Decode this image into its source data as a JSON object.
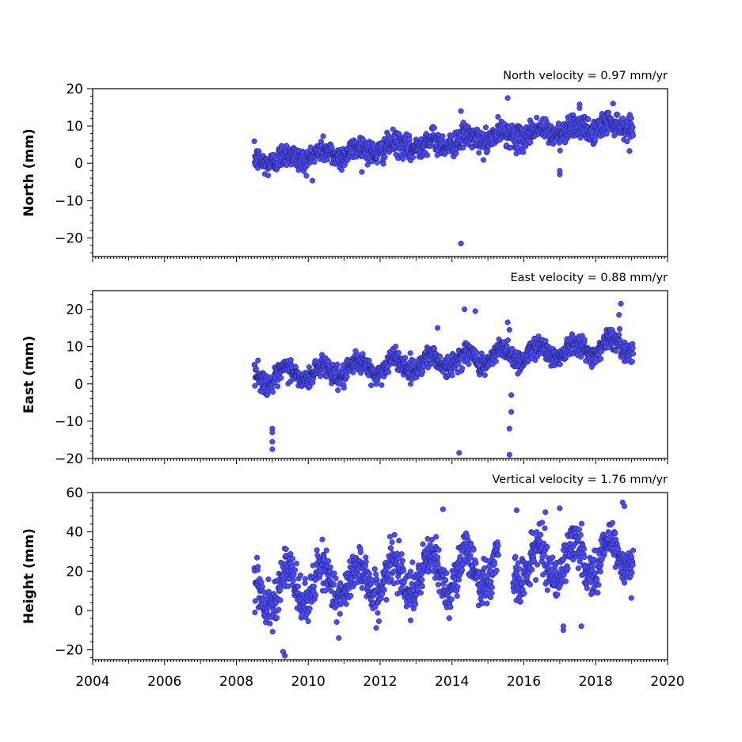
{
  "chart_data": [
    {
      "type": "scatter",
      "panel": "north",
      "annotation": "North velocity = 0.97 mm/yr",
      "ylabel": "North (mm)",
      "xlim": [
        2004,
        2020
      ],
      "ylim": [
        -25,
        20
      ],
      "yticks": [
        20,
        10,
        0,
        -10,
        -20
      ],
      "xticks": [
        2004,
        2006,
        2008,
        2010,
        2012,
        2014,
        2016,
        2018,
        2020
      ],
      "x_ticklabels_visible": false,
      "series": [
        {
          "x_start": 2008.5,
          "x_end": 2019.05,
          "offset": 0.5,
          "velocity": 0.97,
          "seasonal_amp": 1.2,
          "noise": 1.6,
          "outliers": [
            [
              2014.25,
              -21.5
            ],
            [
              2015.55,
              17.5
            ],
            [
              2014.25,
              14.0
            ],
            [
              2017.55,
              15.8
            ],
            [
              2017.0,
              -3.0
            ],
            [
              2017.0,
              -2.0
            ]
          ]
        }
      ]
    },
    {
      "type": "scatter",
      "panel": "east",
      "annotation": "East velocity = 0.88 mm/yr",
      "ylabel": "East (mm)",
      "xlim": [
        2004,
        2020
      ],
      "ylim": [
        -20,
        25
      ],
      "yticks": [
        20,
        10,
        0,
        -10,
        -20
      ],
      "xticks": [
        2004,
        2006,
        2008,
        2010,
        2012,
        2014,
        2016,
        2018,
        2020
      ],
      "x_ticklabels_visible": false,
      "series": [
        {
          "x_start": 2008.5,
          "x_end": 2019.05,
          "offset": 1.5,
          "velocity": 0.88,
          "seasonal_amp": 2.0,
          "noise": 1.4,
          "outliers": [
            [
              2009.0,
              -12.0
            ],
            [
              2009.0,
              -13.0
            ],
            [
              2009.0,
              -15.5
            ],
            [
              2009.0,
              -17.5
            ],
            [
              2014.2,
              -18.5
            ],
            [
              2014.35,
              20.0
            ],
            [
              2014.65,
              19.5
            ],
            [
              2015.6,
              -19.0
            ],
            [
              2015.6,
              -12.0
            ],
            [
              2015.65,
              -7.5
            ],
            [
              2015.65,
              -3.0
            ],
            [
              2015.55,
              16.5
            ],
            [
              2015.6,
              14.5
            ],
            [
              2018.7,
              21.5
            ],
            [
              2018.65,
              18.5
            ],
            [
              2013.6,
              15.0
            ]
          ]
        }
      ]
    },
    {
      "type": "scatter",
      "panel": "height",
      "annotation": "Vertical velocity = 1.76 mm/yr",
      "ylabel": "Height (mm)",
      "xlim": [
        2004,
        2020
      ],
      "ylim": [
        -25,
        60
      ],
      "yticks": [
        60,
        40,
        20,
        0,
        -20
      ],
      "xticks": [
        2004,
        2006,
        2008,
        2010,
        2012,
        2014,
        2016,
        2018,
        2020
      ],
      "x_ticklabels_visible": true,
      "series": [
        {
          "x_start": 2008.5,
          "x_end": 2019.05,
          "offset": 10.0,
          "velocity": 1.76,
          "seasonal_amp": 9.0,
          "noise": 5.5,
          "gaps": [
            [
              2015.3,
              2015.7
            ]
          ],
          "outliers": [
            [
              2009.35,
              -23.0
            ],
            [
              2009.3,
              -21.0
            ],
            [
              2010.85,
              -14.0
            ],
            [
              2012.85,
              -5.0
            ],
            [
              2017.1,
              -10.0
            ],
            [
              2017.1,
              -8.0
            ],
            [
              2017.6,
              -8.0
            ],
            [
              2013.75,
              51.5
            ],
            [
              2015.8,
              51.0
            ],
            [
              2016.6,
              50.0
            ],
            [
              2017.0,
              52.0
            ],
            [
              2018.75,
              55.0
            ],
            [
              2018.8,
              53.0
            ]
          ]
        }
      ]
    }
  ]
}
